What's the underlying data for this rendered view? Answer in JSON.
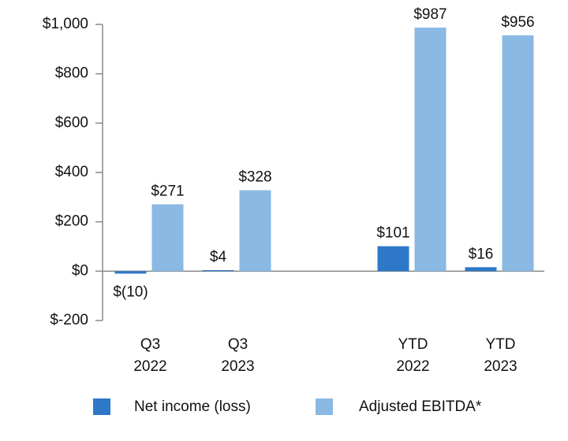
{
  "chart_data": {
    "type": "bar",
    "categories": [
      "Q3\n2022",
      "Q3\n2023",
      null,
      "YTD\n2022",
      "YTD\n2023"
    ],
    "series": [
      {
        "name": "Net income (loss)",
        "color": "#2e78c8",
        "values": [
          -10,
          4,
          null,
          101,
          16
        ],
        "value_labels": [
          "$(10)",
          "$4",
          null,
          "$101",
          "$16"
        ]
      },
      {
        "name": "Adjusted EBITDA*",
        "color": "#8ab9e3",
        "values": [
          271,
          328,
          null,
          987,
          956
        ],
        "value_labels": [
          "$271",
          "$328",
          null,
          "$987",
          "$956"
        ]
      }
    ],
    "ylim": [
      -200,
      1000
    ],
    "yticks": [
      {
        "value": -200,
        "label": "$-200"
      },
      {
        "value": 0,
        "label": "$0"
      },
      {
        "value": 200,
        "label": "$200"
      },
      {
        "value": 400,
        "label": "$400"
      },
      {
        "value": 600,
        "label": "$600"
      },
      {
        "value": 800,
        "label": "$800"
      },
      {
        "value": 1000,
        "label": "$1,000"
      }
    ],
    "grid": false,
    "legend": "bottom"
  }
}
